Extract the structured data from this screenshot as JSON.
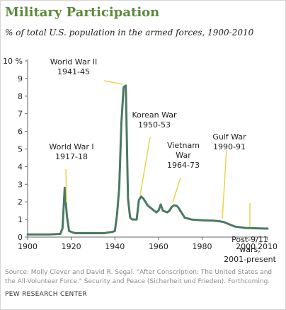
{
  "chart_data": {
    "type": "line",
    "title": "Military Participation",
    "subtitle": "% of total U.S. population in the armed forces, 1900-2010",
    "ylim": [
      0,
      10
    ],
    "xlim": [
      1900,
      2010
    ],
    "y_ticks": [
      0,
      1,
      2,
      3,
      4,
      5,
      6,
      7,
      8,
      9,
      10
    ],
    "y_tick_labels": [
      "0",
      "1",
      "2",
      "3",
      "4",
      "5",
      "6",
      "7",
      "8",
      "9",
      "10 %"
    ],
    "x_ticks": [
      1900,
      1920,
      1940,
      1960,
      1980,
      2000,
      2010
    ],
    "x_tick_labels": [
      "1900",
      "1920",
      "1940",
      "1960",
      "1980",
      "2000",
      "2010"
    ],
    "grid": false,
    "line_color": "#4a7a62",
    "series": [
      {
        "x": [
          1900,
          1905,
          1910,
          1915,
          1916,
          1917,
          1918,
          1919,
          1920,
          1921,
          1922,
          1925,
          1930,
          1935,
          1939,
          1940,
          1941,
          1942,
          1943,
          1944,
          1945,
          1946,
          1947,
          1948,
          1949,
          1950,
          1951,
          1952,
          1953,
          1954,
          1955,
          1956,
          1957,
          1958,
          1959,
          1960,
          1961,
          1962,
          1963,
          1964,
          1965,
          1966,
          1967,
          1968,
          1969,
          1970,
          1971,
          1972,
          1975,
          1980,
          1985,
          1988,
          1990,
          1991,
          1993,
          1995,
          2000,
          2005,
          2010
        ],
        "y": [
          0.15,
          0.15,
          0.15,
          0.18,
          0.5,
          2.8,
          1.2,
          0.35,
          0.3,
          0.25,
          0.22,
          0.22,
          0.22,
          0.22,
          0.3,
          0.35,
          1.3,
          2.8,
          6.5,
          8.5,
          8.6,
          2.2,
          1.1,
          1.0,
          1.0,
          1.0,
          2.1,
          2.3,
          2.2,
          2.0,
          1.8,
          1.7,
          1.6,
          1.5,
          1.4,
          1.5,
          1.85,
          1.5,
          1.45,
          1.4,
          1.5,
          1.7,
          1.8,
          1.8,
          1.7,
          1.5,
          1.3,
          1.1,
          1.0,
          0.95,
          0.93,
          0.9,
          0.85,
          0.8,
          0.7,
          0.6,
          0.52,
          0.5,
          0.48
        ]
      }
    ],
    "annotations": [
      {
        "id": "ww1",
        "lines": [
          "World War I",
          "1917-18"
        ],
        "x": 1918,
        "y": 2.8
      },
      {
        "id": "ww2",
        "lines": [
          "World War II",
          "1941-45"
        ],
        "x": 1945,
        "y": 8.6
      },
      {
        "id": "korea",
        "lines": [
          "Korean War",
          "1950-53"
        ],
        "x": 1952,
        "y": 2.3
      },
      {
        "id": "vietnam",
        "lines": [
          "Vietnam",
          "War",
          "1964-73"
        ],
        "x": 1968,
        "y": 1.8
      },
      {
        "id": "gulf",
        "lines": [
          "Gulf War",
          "1990-91"
        ],
        "x": 1991,
        "y": 0.8
      },
      {
        "id": "post911",
        "lines": [
          "Post-9/11",
          "wars,",
          "2001-present"
        ],
        "x": 2004,
        "y": 0.5
      }
    ]
  },
  "footer": {
    "source": "Source: Molly Clever and David R. Segal. \"After Conscription: The United States and the All-Volunteer Force.\" Security and Peace (Sicherheit und Frieden). Forthcoming.",
    "organization": "PEW RESEARCH CENTER"
  }
}
